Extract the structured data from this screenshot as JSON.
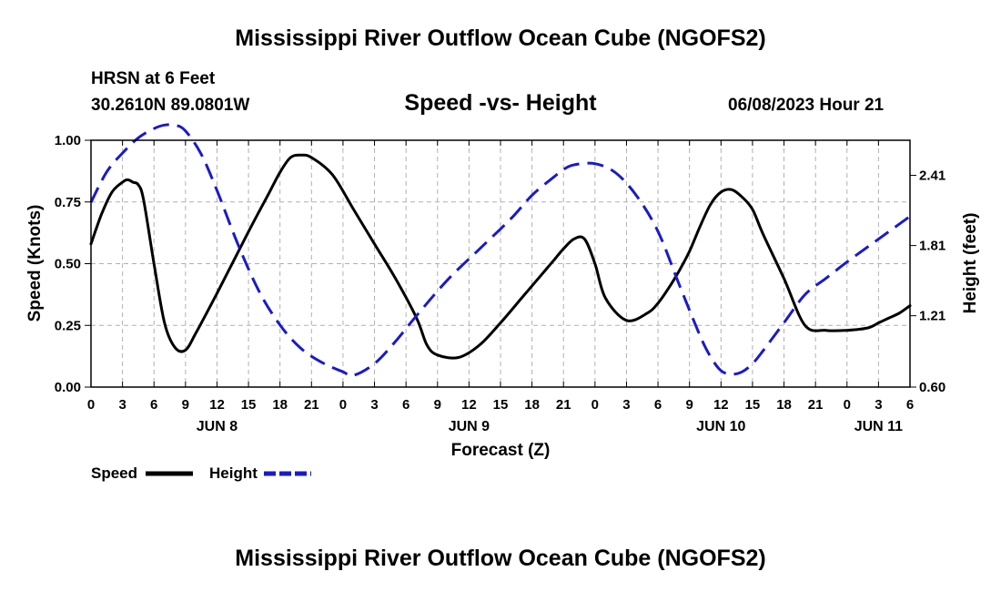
{
  "header": {
    "title": "Mississippi River Outflow Ocean Cube (NGOFS2)",
    "station": "HRSN at 6 Feet",
    "coords": "30.2610N  89.0801W",
    "subtitle": "Speed -vs- Height",
    "datetime": "06/08/2023 Hour 21"
  },
  "footer": {
    "title": "Mississippi River Outflow Ocean Cube (NGOFS2)"
  },
  "colors": {
    "speed": "#000000",
    "height": "#1a1acc",
    "grid": "#b0b0b0"
  },
  "chart_data": {
    "type": "line",
    "xlabel": "Forecast (Z)",
    "ylabel_left": "Speed (Knots)",
    "ylabel_right": "Height (feet)",
    "x_unit": "forecast hours from Jun 8 00Z",
    "xlim": [
      0,
      78
    ],
    "ylim_left": [
      0,
      1
    ],
    "ylim_right": [
      0.6,
      2.71
    ],
    "x_ticks": [
      0,
      3,
      6,
      9,
      12,
      15,
      18,
      21,
      24,
      27,
      30,
      33,
      36,
      39,
      42,
      45,
      48,
      51,
      54,
      57,
      60,
      63,
      66,
      69,
      72,
      75,
      78
    ],
    "x_tick_labels": [
      "0",
      "3",
      "6",
      "9",
      "12",
      "15",
      "18",
      "21",
      "0",
      "3",
      "6",
      "9",
      "12",
      "15",
      "18",
      "21",
      "0",
      "3",
      "6",
      "9",
      "12",
      "15",
      "18",
      "21",
      "0",
      "3",
      "6"
    ],
    "day_labels": [
      {
        "x": 12,
        "label": "JUN 8"
      },
      {
        "x": 36,
        "label": "JUN 9"
      },
      {
        "x": 60,
        "label": "JUN 10"
      },
      {
        "x": 75,
        "label": "JUN 11"
      }
    ],
    "y_left_ticks": [
      0,
      0.25,
      0.5,
      0.75,
      1.0
    ],
    "y_left_tick_labels": [
      "0.00",
      "0.25",
      "0.50",
      "0.75",
      "1.00"
    ],
    "y_right_ticks": [
      0.6,
      1.21,
      1.81,
      2.41
    ],
    "y_right_tick_labels": [
      "0.60",
      "1.21",
      "1.81",
      "2.41"
    ],
    "legend": [
      {
        "label": "Speed",
        "style": "solid"
      },
      {
        "label": "Height",
        "style": "dashed"
      }
    ],
    "series": [
      {
        "name": "Speed",
        "axis": "left",
        "style": "solid",
        "x": [
          0,
          1,
          2,
          3,
          3.5,
          4,
          4.5,
          5,
          6,
          7,
          8,
          9,
          10,
          12,
          15,
          17,
          18,
          19,
          20,
          21,
          23,
          25,
          27,
          29,
          31,
          32,
          33,
          35,
          37,
          39,
          41,
          43,
          44,
          45,
          46,
          47,
          48,
          49,
          51,
          53,
          54,
          55,
          56,
          57,
          58,
          59,
          60,
          61,
          62,
          63,
          64,
          66,
          68,
          70,
          72,
          74,
          75,
          76,
          77,
          78
        ],
        "values": [
          0.58,
          0.7,
          0.79,
          0.83,
          0.84,
          0.83,
          0.82,
          0.76,
          0.5,
          0.26,
          0.16,
          0.15,
          0.22,
          0.38,
          0.63,
          0.79,
          0.87,
          0.93,
          0.94,
          0.93,
          0.86,
          0.72,
          0.58,
          0.44,
          0.28,
          0.17,
          0.13,
          0.12,
          0.17,
          0.26,
          0.36,
          0.46,
          0.51,
          0.56,
          0.6,
          0.6,
          0.5,
          0.36,
          0.27,
          0.3,
          0.34,
          0.4,
          0.47,
          0.55,
          0.65,
          0.74,
          0.79,
          0.8,
          0.77,
          0.72,
          0.62,
          0.44,
          0.25,
          0.23,
          0.23,
          0.24,
          0.26,
          0.28,
          0.3,
          0.33
        ]
      },
      {
        "name": "Height",
        "axis": "right",
        "style": "dashed",
        "x": [
          0,
          1.5,
          3,
          4.5,
          6,
          7,
          8,
          9,
          10.5,
          12,
          14,
          16,
          18,
          20,
          22,
          24,
          25,
          27,
          29,
          31,
          34,
          37,
          40,
          42,
          44,
          45,
          46,
          48,
          50,
          52,
          54,
          56,
          58,
          59,
          60,
          61,
          62,
          63,
          64,
          66,
          68,
          70,
          72,
          74,
          76,
          78
        ],
        "values": [
          2.18,
          2.44,
          2.6,
          2.73,
          2.81,
          2.84,
          2.84,
          2.79,
          2.59,
          2.28,
          1.82,
          1.42,
          1.13,
          0.93,
          0.81,
          0.73,
          0.7,
          0.8,
          0.99,
          1.21,
          1.52,
          1.78,
          2.04,
          2.24,
          2.39,
          2.46,
          2.5,
          2.51,
          2.43,
          2.23,
          1.93,
          1.48,
          1.04,
          0.86,
          0.74,
          0.71,
          0.73,
          0.8,
          0.91,
          1.15,
          1.39,
          1.53,
          1.67,
          1.8,
          1.93,
          2.06
        ]
      }
    ]
  }
}
